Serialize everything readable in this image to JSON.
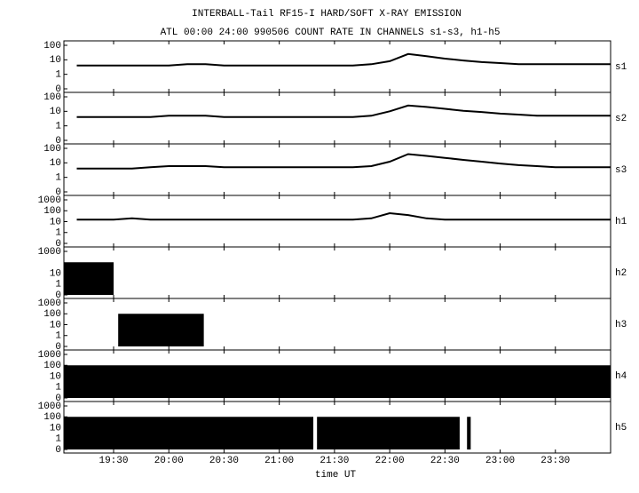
{
  "figure": {
    "title": "INTERBALL-Tail RF15-I HARD/SOFT X-RAY EMISSION",
    "subtitle": "ATL 00:00 24:00 990506  COUNT RATE IN CHANNELS s1-s3, h1-h5",
    "xlabel": "time UT"
  },
  "chart_data": [
    {
      "type": "line",
      "name": "s1",
      "color": "#000000",
      "yscale": "symlog",
      "x": [
        1150,
        1160,
        1170,
        1180,
        1190,
        1200,
        1210,
        1220,
        1230,
        1240,
        1250,
        1260,
        1270,
        1280,
        1290,
        1300,
        1310,
        1320,
        1330,
        1340,
        1350,
        1360,
        1370,
        1380,
        1390,
        1400,
        1410,
        1420,
        1430,
        1440
      ],
      "values": [
        4,
        4,
        4,
        4,
        4,
        4,
        5,
        5,
        4,
        4,
        4,
        4,
        4,
        4,
        4,
        4,
        5,
        8,
        25,
        18,
        12,
        9,
        7,
        6,
        5,
        5,
        5,
        5,
        5,
        5
      ],
      "xlim": [
        1143,
        1440
      ],
      "xticks": [
        1170,
        1200,
        1230,
        1260,
        1290,
        1320,
        1350,
        1380,
        1410
      ],
      "ylim": [
        0,
        100
      ],
      "yticks": [
        0,
        1,
        10,
        100
      ]
    },
    {
      "type": "line",
      "name": "s2",
      "color": "#000000",
      "yscale": "symlog",
      "x": [
        1150,
        1160,
        1170,
        1180,
        1190,
        1200,
        1210,
        1220,
        1230,
        1240,
        1250,
        1260,
        1270,
        1280,
        1290,
        1300,
        1310,
        1320,
        1330,
        1340,
        1350,
        1360,
        1370,
        1380,
        1390,
        1400,
        1410,
        1420,
        1430,
        1440
      ],
      "values": [
        4,
        4,
        4,
        4,
        4,
        5,
        5,
        5,
        4,
        4,
        4,
        4,
        4,
        4,
        4,
        4,
        5,
        10,
        25,
        20,
        15,
        11,
        9,
        7,
        6,
        5,
        5,
        5,
        5,
        5
      ],
      "xlim": [
        1143,
        1440
      ],
      "xticks": [
        1170,
        1200,
        1230,
        1260,
        1290,
        1320,
        1350,
        1380,
        1410
      ],
      "ylim": [
        0,
        100
      ],
      "yticks": [
        0,
        1,
        10,
        100
      ]
    },
    {
      "type": "line",
      "name": "s3",
      "color": "#000000",
      "yscale": "symlog",
      "x": [
        1150,
        1160,
        1170,
        1180,
        1190,
        1200,
        1210,
        1220,
        1230,
        1240,
        1250,
        1260,
        1270,
        1280,
        1290,
        1300,
        1310,
        1320,
        1330,
        1340,
        1350,
        1360,
        1370,
        1380,
        1390,
        1400,
        1410,
        1420,
        1430,
        1440
      ],
      "values": [
        4,
        4,
        4,
        4,
        5,
        6,
        6,
        6,
        5,
        5,
        5,
        5,
        5,
        5,
        5,
        5,
        6,
        12,
        40,
        30,
        22,
        16,
        12,
        9,
        7,
        6,
        5,
        5,
        5,
        5
      ],
      "xlim": [
        1143,
        1440
      ],
      "xticks": [
        1170,
        1200,
        1230,
        1260,
        1290,
        1320,
        1350,
        1380,
        1410
      ],
      "ylim": [
        0,
        100
      ],
      "yticks": [
        0,
        1,
        10,
        100
      ]
    },
    {
      "type": "line",
      "name": "h1",
      "color": "#000000",
      "yscale": "symlog",
      "x": [
        1150,
        1160,
        1170,
        1180,
        1190,
        1200,
        1210,
        1220,
        1230,
        1240,
        1250,
        1260,
        1270,
        1280,
        1290,
        1300,
        1310,
        1320,
        1330,
        1340,
        1350,
        1360,
        1370,
        1380,
        1390,
        1400,
        1410,
        1420,
        1430,
        1440
      ],
      "values": [
        15,
        15,
        15,
        20,
        15,
        15,
        15,
        15,
        15,
        15,
        15,
        15,
        15,
        15,
        15,
        15,
        20,
        60,
        40,
        20,
        15,
        15,
        15,
        15,
        15,
        15,
        15,
        15,
        15,
        15
      ],
      "xlim": [
        1143,
        1440
      ],
      "xticks": [
        1170,
        1200,
        1230,
        1260,
        1290,
        1320,
        1350,
        1380,
        1410
      ],
      "ylim": [
        0,
        1000
      ],
      "yticks": [
        0,
        1,
        10,
        100,
        1000
      ]
    },
    {
      "type": "bar",
      "name": "h2",
      "color": "#000000",
      "yscale": "symlog",
      "x_start": [
        1143
      ],
      "x_end": [
        1170
      ],
      "values": [
        100
      ],
      "xlim": [
        1143,
        1440
      ],
      "xticks": [
        1170,
        1200,
        1230,
        1260,
        1290,
        1320,
        1350,
        1380,
        1410
      ],
      "ylim": [
        0,
        1000
      ],
      "yticks": [
        0,
        1,
        10,
        1000
      ]
    },
    {
      "type": "bar",
      "name": "h3",
      "color": "#000000",
      "yscale": "symlog",
      "x_start": [
        1172.5
      ],
      "x_end": [
        1219
      ],
      "values": [
        100
      ],
      "xlim": [
        1143,
        1440
      ],
      "xticks": [
        1170,
        1200,
        1230,
        1260,
        1290,
        1320,
        1350,
        1380,
        1410
      ],
      "ylim": [
        0,
        1000
      ],
      "yticks": [
        0,
        1,
        10,
        100,
        1000
      ]
    },
    {
      "type": "bar",
      "name": "h4",
      "color": "#000000",
      "yscale": "symlog",
      "x_start": [
        1143
      ],
      "x_end": [
        1440
      ],
      "values": [
        100
      ],
      "xlim": [
        1143,
        1440
      ],
      "xticks": [
        1170,
        1200,
        1230,
        1260,
        1290,
        1320,
        1350,
        1380,
        1410
      ],
      "ylim": [
        0,
        1000
      ],
      "yticks": [
        0,
        1,
        10,
        100,
        1000
      ]
    },
    {
      "type": "bar",
      "name": "h5",
      "color": "#000000",
      "yscale": "symlog",
      "x_start": [
        1143,
        1280.5,
        1362
      ],
      "x_end": [
        1278.5,
        1358,
        1364
      ],
      "values": [
        100,
        100,
        100
      ],
      "xlim": [
        1143,
        1440
      ],
      "xticks": [
        {
          "value": 1170,
          "label": "19:30"
        },
        {
          "value": 1200,
          "label": "20:00"
        },
        {
          "value": 1230,
          "label": "20:30"
        },
        {
          "value": 1260,
          "label": "21:00"
        },
        {
          "value": 1290,
          "label": "21:30"
        },
        {
          "value": 1320,
          "label": "22:00"
        },
        {
          "value": 1350,
          "label": "22:30"
        },
        {
          "value": 1380,
          "label": "23:00"
        },
        {
          "value": 1410,
          "label": "23:30"
        }
      ],
      "ylim": [
        0,
        1000
      ],
      "yticks": [
        0,
        1,
        10,
        100,
        1000
      ]
    }
  ]
}
